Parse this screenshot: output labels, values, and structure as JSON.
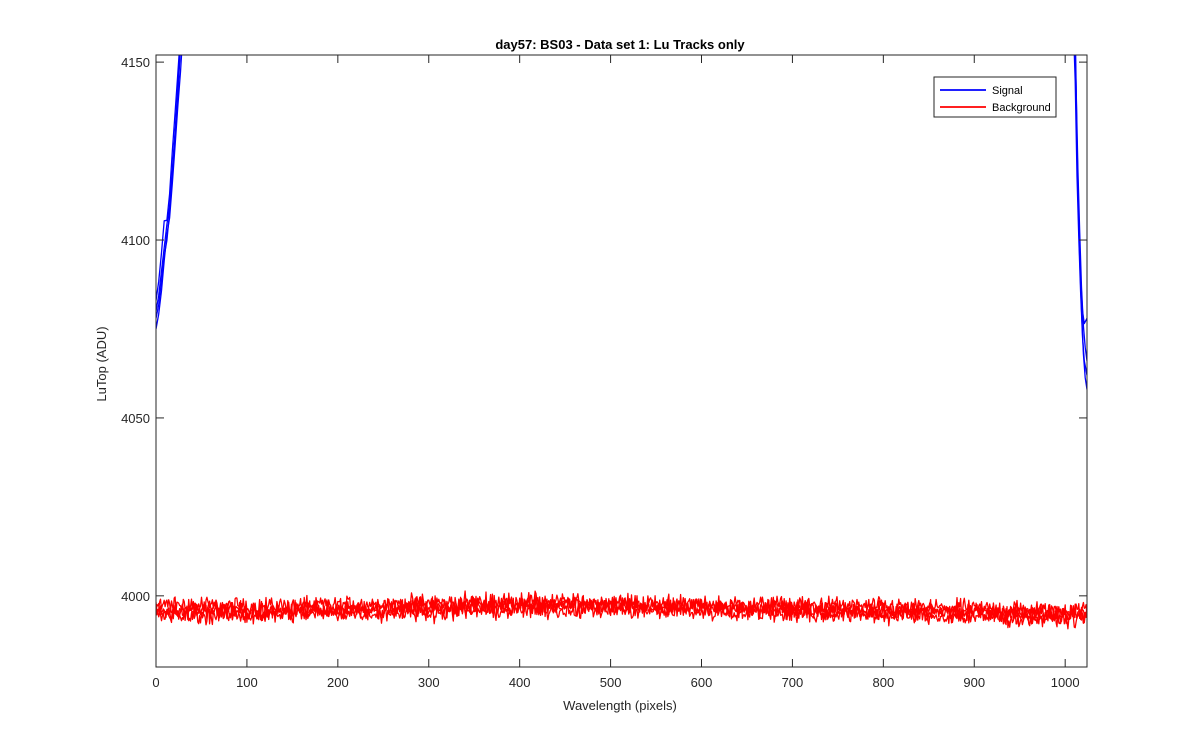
{
  "chart_data": {
    "type": "line",
    "title": "day57: BS03 - Data set 1: Lu Tracks only",
    "xlabel": "Wavelength (pixels)",
    "ylabel": "LuTop (ADU)",
    "xlim": [
      0,
      1024
    ],
    "ylim": [
      3980,
      4152
    ],
    "xticks": [
      0,
      100,
      200,
      300,
      400,
      500,
      600,
      700,
      800,
      900,
      1000
    ],
    "yticks": [
      4000,
      4050,
      4100,
      4150
    ],
    "grid": false,
    "legend_position": "top-right",
    "series": [
      {
        "name": "Signal",
        "color": "#0000ff",
        "traces": [
          {
            "x": [
              0,
              3,
              6,
              9,
              12,
              15,
              18,
              21,
              24,
              27,
              30
            ],
            "y": [
              4075,
              4079,
              4086,
              4094,
              4101,
              4106,
              4116,
              4127,
              4137,
              4147,
              4160
            ]
          },
          {
            "x": [
              0,
              3,
              6,
              9,
              12,
              15,
              18,
              21,
              24,
              27
            ],
            "y": [
              4080,
              4084,
              4091,
              4098,
              4104,
              4110,
              4120,
              4131,
              4143,
              4156
            ]
          },
          {
            "x": [
              0,
              3,
              6,
              9,
              12,
              15,
              18,
              21,
              24,
              27
            ],
            "y": [
              4083,
              4088,
              4096,
              4105,
              4106,
              4113,
              4125,
              4136,
              4147,
              4158
            ]
          },
          {
            "x": [
              0,
              3,
              6,
              9,
              12,
              15,
              18,
              21,
              24,
              27
            ],
            "y": [
              4078,
              4082,
              4088,
              4095,
              4100,
              4108,
              4118,
              4130,
              4141,
              4154
            ]
          },
          {
            "x": [
              1010,
              1012,
              1014,
              1016,
              1018,
              1020,
              1022,
              1024
            ],
            "y": [
              4160,
              4140,
              4113,
              4095,
              4080,
              4068,
              4061,
              4058
            ]
          },
          {
            "x": [
              1009,
              1011,
              1013,
              1015,
              1017,
              1019,
              1021,
              1024
            ],
            "y": [
              4160,
              4145,
              4118,
              4100,
              4085,
              4073,
              4066,
              4062
            ]
          },
          {
            "x": [
              1011,
              1013,
              1015,
              1017,
              1019,
              1021,
              1024
            ],
            "y": [
              4160,
              4127,
              4106,
              4090,
              4080,
              4077,
              4078
            ]
          },
          {
            "x": [
              1010,
              1012,
              1014,
              1016,
              1018,
              1020,
              1022,
              1024
            ],
            "y": [
              4160,
              4143,
              4120,
              4102,
              4087,
              4076,
              4070,
              4066
            ]
          }
        ]
      },
      {
        "name": "Background",
        "color": "#ff0000",
        "traces": [
          {
            "x": [
              0,
              100,
              200,
              300,
              400,
              500,
              600,
              700,
              800,
              900,
              1000,
              1024
            ],
            "y": [
              3997.5,
              3997.0,
              3997.5,
              3998.0,
              3998.5,
              3998.0,
              3997.5,
              3997.5,
              3997.0,
              3996.5,
              3996.0,
              3996.0
            ],
            "noise": 1.6
          },
          {
            "x": [
              0,
              100,
              200,
              300,
              400,
              500,
              600,
              700,
              800,
              900,
              1000,
              1024
            ],
            "y": [
              3995.5,
              3995.5,
              3996.0,
              3996.5,
              3997.0,
              3997.0,
              3996.5,
              3996.0,
              3995.5,
              3995.0,
              3994.5,
              3994.5
            ],
            "noise": 1.6
          },
          {
            "x": [
              0,
              100,
              200,
              300,
              400,
              500,
              600,
              700,
              800,
              900,
              1000,
              1024
            ],
            "y": [
              3996.0,
              3996.0,
              3996.5,
              3997.0,
              3997.5,
              3997.5,
              3997.0,
              3996.5,
              3996.0,
              3995.5,
              3995.0,
              3995.0
            ],
            "noise": 1.6
          },
          {
            "x": [
              0,
              100,
              200,
              300,
              400,
              500,
              600,
              700,
              800,
              900,
              1000,
              1024
            ],
            "y": [
              3994.5,
              3994.5,
              3995.0,
              3995.5,
              3996.0,
              3996.0,
              3995.5,
              3995.0,
              3994.5,
              3994.0,
              3993.5,
              3993.5
            ],
            "noise": 1.6
          }
        ]
      }
    ]
  }
}
